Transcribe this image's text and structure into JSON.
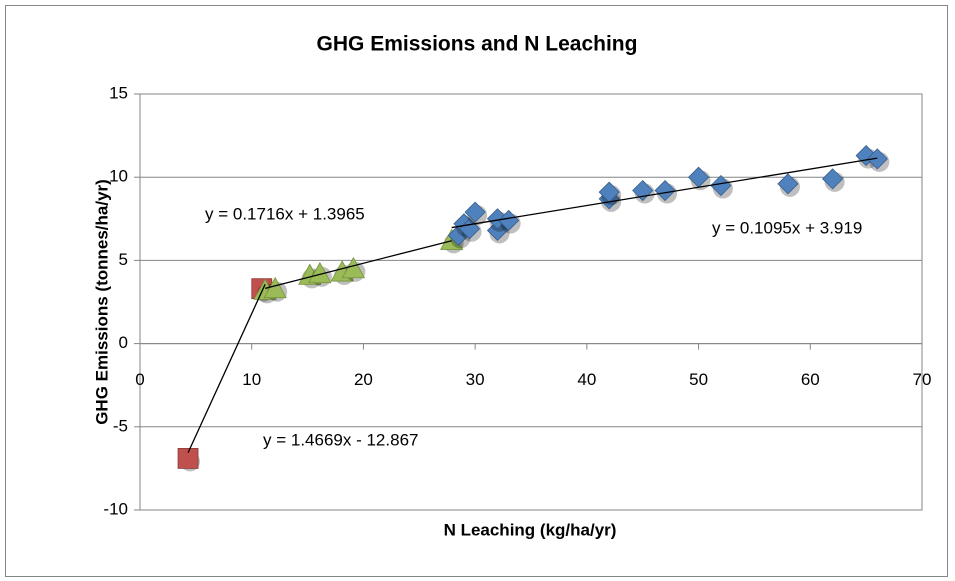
{
  "chart_data": {
    "type": "scatter",
    "title": "GHG Emissions and N Leaching",
    "x_label": "N Leaching (kg/ha/yr)",
    "y_label": "GHG Emissions (tonnes/ha/yr)",
    "xlim": [
      0,
      70
    ],
    "xticks": [
      0,
      10,
      20,
      30,
      40,
      50,
      60,
      70
    ],
    "ylim": [
      -10,
      15
    ],
    "yticks": [
      -10,
      -5,
      0,
      5,
      10,
      15
    ],
    "grid": true,
    "series": [
      {
        "color": "#c0504d",
        "marker": "square",
        "x": [
          4.3,
          10.9
        ],
        "values": [
          -6.9,
          3.3
        ]
      },
      {
        "color": "#9bbb59",
        "marker": "triangle",
        "x": [
          11.2,
          12.1,
          15.2,
          16.1,
          18.1,
          19.1,
          27.9
        ],
        "values": [
          3.2,
          3.3,
          4.1,
          4.2,
          4.3,
          4.5,
          6.2
        ]
      },
      {
        "color": "#4f81bd",
        "marker": "diamond",
        "x": [
          28.5,
          29,
          29.5,
          30,
          32,
          32,
          33,
          42,
          42,
          45,
          47,
          50,
          52,
          58,
          62,
          65,
          66
        ],
        "values": [
          6.5,
          7.2,
          6.9,
          7.9,
          6.8,
          7.5,
          7.4,
          8.7,
          9.1,
          9.2,
          9.2,
          10.0,
          9.5,
          9.6,
          9.9,
          11.3,
          11.1
        ]
      }
    ],
    "trendlines": [
      {
        "label": "y = 1.4669x - 12.867",
        "slope": 1.4669,
        "intercept": -12.867,
        "xrange": [
          4.3,
          11.2
        ]
      },
      {
        "label": "y = 0.1716x + 1.3965",
        "slope": 0.1716,
        "intercept": 1.3965,
        "xrange": [
          11.2,
          27.9
        ]
      },
      {
        "label": "y = 0.1095x + 3.919",
        "slope": 0.1095,
        "intercept": 3.919,
        "xrange": [
          27.9,
          66
        ]
      }
    ]
  }
}
